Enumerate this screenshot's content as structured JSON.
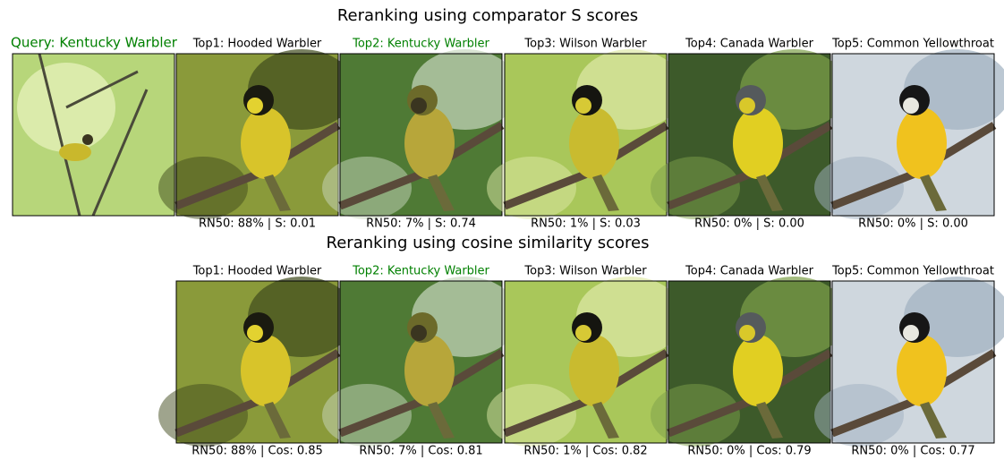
{
  "query": {
    "label": "Query: Kentucky Warbler",
    "color": "#008000"
  },
  "panels": [
    {
      "title": "Reranking using comparator S scores",
      "results": [
        {
          "label": "Top1: Hooded Warbler",
          "color": "#000000",
          "caption": "RN50: 88% | S: 0.01"
        },
        {
          "label": "Top2: Kentucky Warbler",
          "color": "#008000",
          "caption": "RN50: 7% | S: 0.74"
        },
        {
          "label": "Top3: Wilson Warbler",
          "color": "#000000",
          "caption": "RN50: 1% | S: 0.03"
        },
        {
          "label": "Top4: Canada Warbler",
          "color": "#000000",
          "caption": "RN50: 0% | S: 0.00"
        },
        {
          "label": "Top5: Common Yellowthroat",
          "color": "#000000",
          "caption": "RN50: 0% | S: 0.00"
        }
      ]
    },
    {
      "title": "Reranking using cosine similarity scores",
      "results": [
        {
          "label": "Top1: Hooded Warbler",
          "color": "#000000",
          "caption": "RN50: 88% | Cos: 0.85"
        },
        {
          "label": "Top2: Kentucky Warbler",
          "color": "#008000",
          "caption": "RN50: 7% | Cos: 0.81"
        },
        {
          "label": "Top3: Wilson Warbler",
          "color": "#000000",
          "caption": "RN50: 1% | Cos: 0.82"
        },
        {
          "label": "Top4: Canada Warbler",
          "color": "#000000",
          "caption": "RN50: 0% | Cos: 0.79"
        },
        {
          "label": "Top5: Common Yellowthroat",
          "color": "#000000",
          "caption": "RN50: 0% | Cos: 0.77"
        }
      ]
    }
  ]
}
